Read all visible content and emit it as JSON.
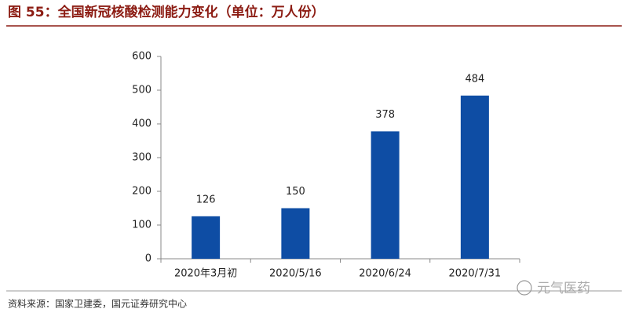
{
  "chart_data": {
    "type": "bar",
    "title": "图 55：全国新冠核酸检测能力变化（单位：万人份）",
    "categories": [
      "2020年3月初",
      "2020/5/16",
      "2020/6/24",
      "2020/7/31"
    ],
    "values": [
      126,
      150,
      378,
      484
    ],
    "color": "#0e4da4",
    "ylim": [
      0,
      600
    ],
    "yticks": [
      0,
      100,
      200,
      300,
      400,
      500,
      600
    ],
    "grid": false,
    "source": "资料来源：国家卫建委，国元证券研究中心",
    "watermark": "元气医药"
  }
}
